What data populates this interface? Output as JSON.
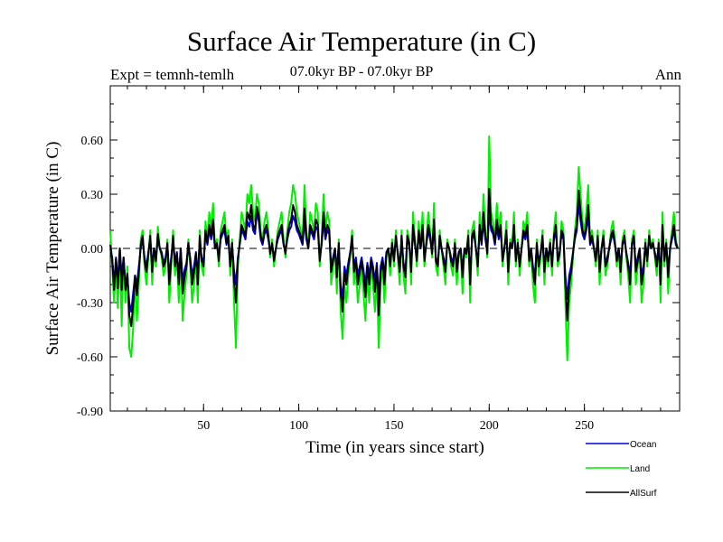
{
  "chart_data": {
    "type": "line",
    "title": "Surface Air Temperature (in C)",
    "subtitle": "07.0kyr BP - 07.0kyr BP",
    "left_annotation": "Expt = temnh-temlh",
    "right_annotation": "Ann",
    "xlabel": "Time (in years since start)",
    "ylabel": "Surface Air Temperature (in C)",
    "xlim": [
      1,
      300
    ],
    "ylim": [
      -0.9,
      0.9
    ],
    "xticks": [
      50,
      100,
      150,
      200,
      250
    ],
    "yticks": [
      0.6,
      0.3,
      0.0,
      -0.3,
      -0.6,
      -0.9
    ],
    "ytick_labels": [
      "0.60",
      "0.30",
      "0.00",
      "-0.30",
      "-0.60",
      "-0.90"
    ],
    "xtick_labels": [
      "50",
      "100",
      "150",
      "200",
      "250"
    ],
    "reference_line": 0.0,
    "series": [
      {
        "name": "Land",
        "color": "#00ee00",
        "values": [
          0.1,
          -0.1,
          -0.3,
          -0.1,
          -0.33,
          0.0,
          -0.43,
          -0.05,
          -0.3,
          -0.1,
          -0.55,
          -0.6,
          -0.45,
          -0.15,
          -0.4,
          -0.2,
          0.05,
          0.1,
          -0.1,
          -0.2,
          -0.05,
          0.1,
          -0.2,
          0.0,
          -0.1,
          0.12,
          0.0,
          -0.05,
          -0.15,
          -0.1,
          0.05,
          -0.3,
          -0.1,
          0.1,
          -0.15,
          -0.05,
          -0.3,
          0.0,
          -0.4,
          -0.25,
          -0.15,
          0.05,
          -0.1,
          -0.3,
          -0.2,
          -0.05,
          -0.3,
          0.1,
          -0.1,
          -0.15,
          0.15,
          0.05,
          0.2,
          0.1,
          0.25,
          0.0,
          0.05,
          -0.1,
          0.1,
          0.15,
          0.2,
          0.05,
          0.1,
          -0.15,
          0.05,
          -0.3,
          -0.55,
          -0.1,
          0.05,
          0.2,
          0.15,
          0.1,
          0.3,
          0.25,
          0.35,
          0.2,
          0.15,
          0.3,
          0.25,
          0.1,
          0.05,
          0.15,
          0.2,
          0.1,
          -0.05,
          0.05,
          -0.1,
          0.0,
          0.1,
          0.15,
          0.2,
          0.05,
          -0.05,
          0.1,
          0.2,
          0.25,
          0.35,
          0.3,
          0.2,
          0.15,
          0.1,
          0.05,
          0.35,
          0.1,
          0.0,
          0.2,
          0.15,
          0.1,
          0.25,
          0.2,
          -0.1,
          0.05,
          0.3,
          0.1,
          0.2,
          0.15,
          -0.2,
          -0.1,
          0.0,
          -0.25,
          0.05,
          -0.35,
          -0.5,
          -0.2,
          -0.3,
          -0.15,
          -0.05,
          0.1,
          -0.2,
          -0.1,
          -0.3,
          -0.2,
          -0.1,
          -0.25,
          -0.4,
          -0.15,
          -0.3,
          -0.1,
          -0.2,
          -0.35,
          -0.15,
          -0.55,
          -0.2,
          -0.1,
          -0.3,
          -0.05,
          0.0,
          -0.15,
          0.05,
          -0.1,
          0.1,
          -0.05,
          -0.2,
          0.1,
          -0.15,
          -0.25,
          0.1,
          0.05,
          -0.2,
          0.2,
          0.05,
          -0.1,
          0.15,
          0.0,
          0.2,
          -0.1,
          0.05,
          0.2,
          0.1,
          -0.05,
          0.25,
          -0.1,
          -0.15,
          0.1,
          0.0,
          -0.1,
          -0.2,
          0.05,
          0.0,
          -0.1,
          -0.15,
          0.05,
          -0.2,
          -0.05,
          0.0,
          -0.25,
          0.0,
          -0.05,
          0.1,
          -0.3,
          0.1,
          0.15,
          0.0,
          -0.15,
          0.2,
          0.05,
          0.3,
          0.1,
          -0.05,
          0.62,
          0.2,
          0.15,
          0.05,
          0.25,
          0.1,
          0.2,
          -0.1,
          0.0,
          0.15,
          -0.2,
          0.05,
          0.0,
          0.2,
          -0.1,
          0.05,
          -0.15,
          0.0,
          0.15,
          0.1,
          0.2,
          -0.1,
          0.0,
          -0.2,
          -0.3,
          0.05,
          -0.15,
          -0.05,
          0.1,
          -0.2,
          0.0,
          -0.1,
          0.05,
          -0.15,
          0.1,
          0.2,
          -0.1,
          -0.05,
          0.15,
          0.1,
          -0.3,
          -0.62,
          -0.3,
          -0.2,
          -0.05,
          0.1,
          0.2,
          0.45,
          0.3,
          0.15,
          0.1,
          0.2,
          0.35,
          0.05,
          0.1,
          0.0,
          -0.1,
          0.1,
          -0.2,
          0.0,
          0.1,
          -0.15,
          -0.1,
          0.0,
          0.1,
          0.15,
          0.05,
          -0.1,
          0.0,
          -0.2,
          0.05,
          0.1,
          -0.05,
          -0.15,
          -0.3,
          0.05,
          0.1,
          -0.2,
          -0.1,
          0.0,
          -0.3,
          -0.2,
          0.05,
          -0.1,
          0.1,
          0.0,
          0.05,
          -0.05,
          -0.15,
          0.05,
          -0.3,
          0.2,
          -0.1,
          0.05,
          -0.25,
          0.0,
          0.1,
          0.2,
          0.05,
          0.0
        ]
      },
      {
        "name": "Ocean",
        "color": "#0000dd",
        "values": [
          0.0,
          -0.05,
          -0.2,
          -0.05,
          -0.18,
          0.0,
          -0.15,
          -0.05,
          -0.2,
          -0.15,
          -0.3,
          -0.35,
          -0.25,
          -0.15,
          -0.2,
          -0.1,
          0.0,
          0.05,
          -0.05,
          -0.1,
          -0.02,
          0.05,
          -0.1,
          0.0,
          -0.05,
          0.05,
          0.0,
          -0.02,
          -0.08,
          -0.05,
          0.02,
          -0.15,
          -0.05,
          0.05,
          -0.08,
          -0.02,
          -0.15,
          0.0,
          -0.18,
          -0.12,
          -0.08,
          0.02,
          -0.05,
          -0.15,
          -0.1,
          -0.02,
          -0.15,
          0.05,
          -0.05,
          -0.08,
          0.08,
          0.02,
          0.1,
          0.05,
          0.12,
          0.0,
          0.02,
          -0.05,
          0.05,
          0.08,
          0.1,
          0.02,
          0.05,
          -0.08,
          0.02,
          -0.12,
          -0.2,
          -0.05,
          0.02,
          0.1,
          0.08,
          0.05,
          0.15,
          0.12,
          0.18,
          0.1,
          0.08,
          0.2,
          0.15,
          0.05,
          0.02,
          0.08,
          0.1,
          0.05,
          -0.02,
          0.02,
          -0.05,
          0.0,
          0.05,
          0.08,
          0.1,
          0.02,
          -0.02,
          0.05,
          0.1,
          0.12,
          0.18,
          0.15,
          0.1,
          0.08,
          0.05,
          0.02,
          0.15,
          0.05,
          0.0,
          0.1,
          0.08,
          0.05,
          0.12,
          0.1,
          -0.05,
          0.02,
          0.15,
          0.05,
          0.1,
          0.08,
          -0.1,
          -0.05,
          0.0,
          -0.12,
          0.02,
          -0.2,
          -0.28,
          -0.1,
          -0.15,
          -0.08,
          -0.02,
          0.05,
          -0.1,
          -0.05,
          -0.15,
          -0.1,
          -0.05,
          -0.12,
          -0.2,
          -0.08,
          -0.15,
          -0.05,
          -0.1,
          -0.18,
          -0.08,
          -0.28,
          -0.1,
          -0.05,
          -0.15,
          -0.02,
          0.0,
          -0.08,
          0.02,
          -0.05,
          0.05,
          -0.02,
          -0.1,
          0.05,
          -0.08,
          -0.12,
          0.05,
          0.02,
          -0.1,
          0.1,
          0.02,
          -0.05,
          0.08,
          0.0,
          0.1,
          -0.05,
          0.02,
          0.1,
          0.05,
          -0.02,
          0.12,
          -0.05,
          -0.08,
          0.05,
          0.0,
          -0.05,
          -0.1,
          0.02,
          0.0,
          -0.05,
          -0.08,
          0.02,
          -0.1,
          -0.02,
          0.0,
          -0.12,
          0.0,
          -0.02,
          0.05,
          -0.15,
          0.05,
          0.08,
          0.0,
          -0.08,
          0.1,
          0.02,
          0.15,
          0.05,
          -0.02,
          0.2,
          0.1,
          0.08,
          0.02,
          0.12,
          0.05,
          0.1,
          -0.05,
          0.0,
          0.08,
          -0.1,
          0.02,
          0.0,
          0.1,
          -0.05,
          0.02,
          -0.08,
          0.0,
          0.08,
          0.05,
          0.1,
          -0.05,
          0.0,
          -0.1,
          -0.15,
          0.02,
          -0.08,
          -0.02,
          0.05,
          -0.1,
          0.0,
          -0.05,
          0.02,
          -0.08,
          0.05,
          0.1,
          -0.05,
          -0.02,
          0.08,
          0.05,
          -0.15,
          -0.28,
          -0.15,
          -0.1,
          -0.02,
          0.05,
          0.1,
          0.25,
          0.15,
          0.08,
          0.05,
          0.1,
          0.18,
          0.02,
          0.05,
          0.0,
          -0.05,
          0.05,
          -0.1,
          0.0,
          0.05,
          -0.08,
          -0.05,
          0.0,
          0.05,
          0.08,
          0.02,
          -0.05,
          0.0,
          -0.1,
          0.02,
          0.05,
          -0.02,
          -0.08,
          -0.15,
          0.02,
          0.05,
          -0.1,
          -0.05,
          0.0,
          -0.15,
          -0.1,
          0.02,
          -0.05,
          0.05,
          0.0,
          0.02,
          -0.02,
          -0.08,
          0.02,
          -0.15,
          0.1,
          -0.05,
          0.02,
          -0.12,
          0.0,
          0.05,
          0.1,
          0.02,
          0.0
        ]
      },
      {
        "name": "AllSurf",
        "color": "#000000",
        "values": [
          0.02,
          -0.06,
          -0.23,
          -0.06,
          -0.22,
          0.0,
          -0.23,
          -0.05,
          -0.23,
          -0.14,
          -0.37,
          -0.43,
          -0.32,
          -0.15,
          -0.26,
          -0.13,
          0.02,
          0.07,
          -0.07,
          -0.13,
          -0.03,
          0.07,
          -0.13,
          0.0,
          -0.07,
          0.08,
          0.0,
          -0.03,
          -0.1,
          -0.07,
          0.03,
          -0.2,
          -0.07,
          0.07,
          -0.1,
          -0.03,
          -0.2,
          0.0,
          -0.25,
          -0.16,
          -0.1,
          0.03,
          -0.07,
          -0.2,
          -0.13,
          -0.03,
          -0.2,
          0.07,
          -0.07,
          -0.1,
          0.1,
          0.03,
          0.13,
          0.07,
          0.16,
          0.0,
          0.03,
          -0.07,
          0.07,
          0.1,
          0.13,
          0.03,
          0.07,
          -0.1,
          0.03,
          -0.18,
          -0.3,
          -0.07,
          0.03,
          0.13,
          0.1,
          0.07,
          0.2,
          0.16,
          0.24,
          0.13,
          0.1,
          0.23,
          0.18,
          0.07,
          0.03,
          0.1,
          0.13,
          0.07,
          -0.03,
          0.03,
          -0.07,
          0.0,
          0.07,
          0.1,
          0.13,
          0.03,
          -0.03,
          0.07,
          0.13,
          0.16,
          0.24,
          0.2,
          0.13,
          0.1,
          0.07,
          0.03,
          0.22,
          0.07,
          0.0,
          0.13,
          0.1,
          0.07,
          0.16,
          0.13,
          -0.07,
          0.03,
          0.2,
          0.07,
          0.13,
          0.1,
          -0.13,
          -0.07,
          0.0,
          -0.16,
          0.03,
          -0.25,
          -0.35,
          -0.13,
          -0.2,
          -0.1,
          -0.03,
          0.07,
          -0.13,
          -0.07,
          -0.2,
          -0.13,
          -0.07,
          -0.16,
          -0.27,
          -0.1,
          -0.2,
          -0.07,
          -0.13,
          -0.24,
          -0.1,
          -0.37,
          -0.13,
          -0.07,
          -0.2,
          -0.03,
          0.0,
          -0.1,
          0.03,
          -0.07,
          0.07,
          -0.03,
          -0.13,
          0.07,
          -0.1,
          -0.16,
          0.07,
          0.03,
          -0.13,
          0.13,
          0.03,
          -0.07,
          0.1,
          0.0,
          0.13,
          -0.07,
          0.03,
          0.13,
          0.07,
          -0.03,
          0.16,
          -0.07,
          -0.1,
          0.07,
          0.0,
          -0.07,
          -0.13,
          0.03,
          0.0,
          -0.07,
          -0.1,
          0.03,
          -0.13,
          -0.03,
          0.0,
          -0.16,
          0.0,
          -0.03,
          0.07,
          -0.2,
          0.07,
          0.1,
          0.0,
          -0.1,
          0.13,
          0.03,
          0.2,
          0.07,
          -0.03,
          0.33,
          0.13,
          0.1,
          0.03,
          0.16,
          0.07,
          0.13,
          -0.07,
          0.0,
          0.1,
          -0.13,
          0.03,
          0.0,
          0.13,
          -0.07,
          0.03,
          -0.1,
          0.0,
          0.1,
          0.07,
          0.13,
          -0.07,
          0.0,
          -0.13,
          -0.2,
          0.03,
          -0.1,
          -0.03,
          0.07,
          -0.13,
          0.0,
          -0.07,
          0.03,
          -0.1,
          0.07,
          0.13,
          -0.07,
          -0.03,
          0.1,
          0.07,
          -0.2,
          -0.4,
          -0.2,
          -0.13,
          -0.03,
          0.07,
          0.13,
          0.32,
          0.2,
          0.1,
          0.07,
          0.13,
          0.24,
          0.03,
          0.07,
          0.0,
          -0.07,
          0.07,
          -0.13,
          0.0,
          0.07,
          -0.1,
          -0.07,
          0.0,
          0.07,
          0.1,
          0.03,
          -0.07,
          0.0,
          -0.13,
          0.03,
          0.07,
          -0.03,
          -0.1,
          -0.2,
          0.03,
          0.07,
          -0.13,
          -0.07,
          0.0,
          -0.2,
          -0.13,
          0.03,
          -0.07,
          0.07,
          0.0,
          0.03,
          -0.03,
          -0.1,
          0.03,
          -0.2,
          0.13,
          -0.07,
          0.03,
          -0.16,
          0.0,
          0.07,
          0.13,
          0.03,
          0.0
        ]
      }
    ],
    "legend": [
      {
        "label": "Ocean",
        "color": "#0000dd"
      },
      {
        "label": "Land",
        "color": "#00ee00"
      },
      {
        "label": "AllSurf",
        "color": "#000000"
      }
    ]
  }
}
